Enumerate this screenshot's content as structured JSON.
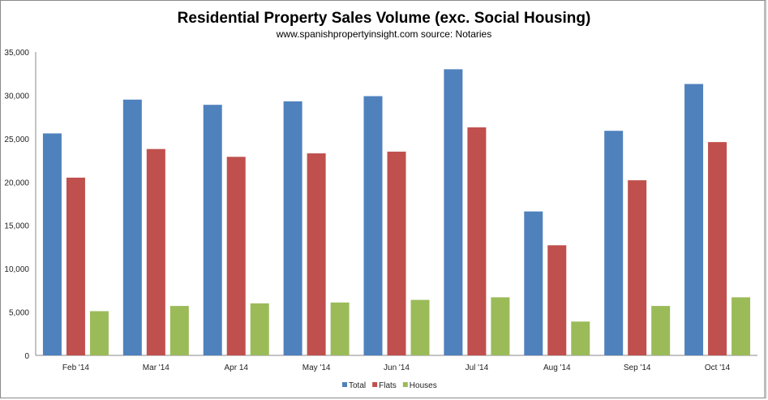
{
  "chart_data": {
    "type": "bar",
    "title": "Residential Property Sales Volume (exc. Social Housing)",
    "subtitle": "www.spanishpropertyinsight.com source: Notaries",
    "categories": [
      "Feb '14",
      "Mar '14",
      "Apr 14",
      "May '14",
      "Jun '14",
      "Jul '14",
      "Aug '14",
      "Sep '14",
      "Oct '14"
    ],
    "series": [
      {
        "name": "Total",
        "color": "#4f81bd",
        "values": [
          25600,
          29500,
          28900,
          29300,
          29900,
          33000,
          16600,
          25900,
          31300
        ]
      },
      {
        "name": "Flats",
        "color": "#c0504d",
        "values": [
          20500,
          23800,
          22900,
          23300,
          23500,
          26300,
          12700,
          20200,
          24600
        ]
      },
      {
        "name": "Houses",
        "color": "#9bbb59",
        "values": [
          5100,
          5700,
          6000,
          6100,
          6400,
          6700,
          3900,
          5700,
          6700
        ]
      }
    ],
    "yticks": [
      "0",
      "5,000",
      "10,000",
      "15,000",
      "20,000",
      "25,000",
      "30,000",
      "35,000"
    ],
    "ylim": [
      0,
      35000
    ],
    "xlabel": "",
    "ylabel": "",
    "grid": false,
    "legend": "bottom"
  }
}
